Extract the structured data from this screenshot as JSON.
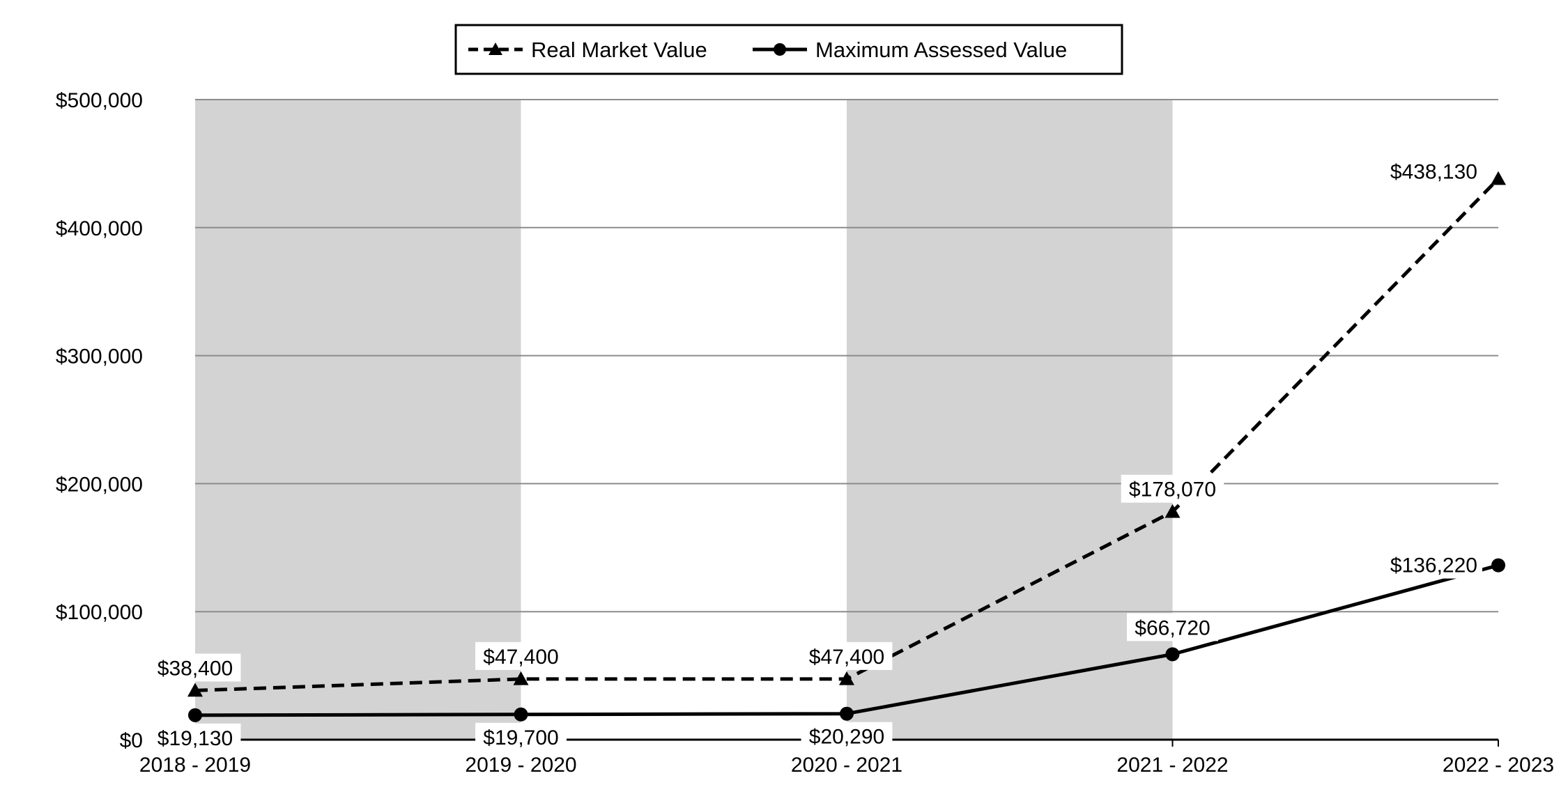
{
  "chart_data": {
    "type": "line",
    "title": "",
    "xlabel": "",
    "ylabel": "",
    "categories": [
      "2018 - 2019",
      "2019 - 2020",
      "2020 - 2021",
      "2021 - 2022",
      "2022 - 2023"
    ],
    "series": [
      {
        "name": "Real Market Value",
        "values": [
          38400,
          47400,
          47400,
          178070,
          438130
        ],
        "labels": [
          "$38,400",
          "$47,400",
          "$47,400",
          "$178,070",
          "$438,130"
        ],
        "line_style": "dashed",
        "marker": "triangle",
        "color": "#000000"
      },
      {
        "name": "Maximum Assessed Value",
        "values": [
          19130,
          19700,
          20290,
          66720,
          136220
        ],
        "labels": [
          "$19,130",
          "$19,700",
          "$20,290",
          "$66,720",
          "$136,220"
        ],
        "line_style": "solid",
        "marker": "circle",
        "color": "#000000"
      }
    ],
    "ylim": [
      0,
      500000
    ],
    "yticks": [
      0,
      100000,
      200000,
      300000,
      400000,
      500000
    ],
    "ytick_labels": [
      "$0",
      "$100,000",
      "$200,000",
      "$300,000",
      "$400,000",
      "$500,000"
    ],
    "grid": true,
    "legend_position": "top-center",
    "band_color": "#d3d3d3",
    "shaded_bands": [
      0,
      2
    ]
  }
}
